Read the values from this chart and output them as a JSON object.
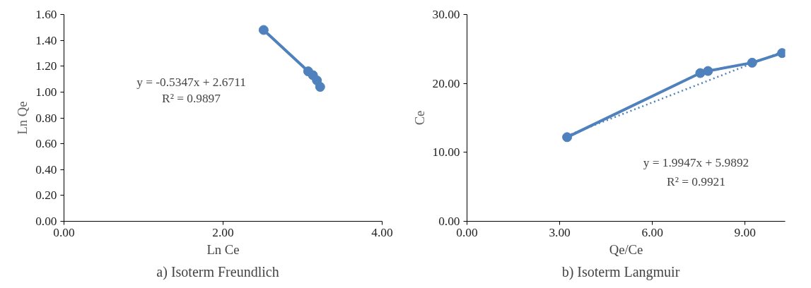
{
  "chart_data": [
    {
      "type": "line",
      "title": "a)    Isoterm Freundlich",
      "xlabel": "Ln Ce",
      "ylabel": "Ln Qe",
      "marker": "circle",
      "line_style": "solid",
      "grid": false,
      "xlim": [
        0,
        4
      ],
      "xticks": [
        {
          "value": 0,
          "label": "0.00"
        },
        {
          "value": 2,
          "label": "2.00"
        },
        {
          "value": 4,
          "label": "4.00"
        }
      ],
      "ylim": [
        0,
        1.6
      ],
      "yticks": [
        {
          "value": 0,
          "label": "0.00"
        },
        {
          "value": 0.2,
          "label": "0.20"
        },
        {
          "value": 0.4,
          "label": "0.40"
        },
        {
          "value": 0.6,
          "label": "0.60"
        },
        {
          "value": 0.8,
          "label": "0.80"
        },
        {
          "value": 1.0,
          "label": "1.00"
        },
        {
          "value": 1.2,
          "label": "1.20"
        },
        {
          "value": 1.4,
          "label": "1.40"
        },
        {
          "value": 1.6,
          "label": "1.60"
        }
      ],
      "annotations": [
        "y = -0.5347x + 2.6711",
        "R² = 0.9897"
      ],
      "series": [
        {
          "color": "#4f81bd",
          "x": [
            2.51,
            3.07,
            3.13,
            3.18,
            3.22
          ],
          "values": [
            1.48,
            1.16,
            1.13,
            1.09,
            1.04
          ]
        }
      ]
    },
    {
      "type": "line",
      "title": "b)    Isoterm Langmuir",
      "xlabel": "Qe/Ce",
      "ylabel": "Ce",
      "marker": "circle",
      "line_style": "solid",
      "grid": false,
      "xlim": [
        0,
        10.3
      ],
      "xticks": [
        {
          "value": 0,
          "label": "0.00"
        },
        {
          "value": 3,
          "label": "3.00"
        },
        {
          "value": 6,
          "label": "6.00"
        },
        {
          "value": 9,
          "label": "9.00"
        }
      ],
      "ylim": [
        0,
        30
      ],
      "yticks": [
        {
          "value": 0,
          "label": "0.00"
        },
        {
          "value": 10,
          "label": "10.00"
        },
        {
          "value": 20,
          "label": "20.00"
        },
        {
          "value": 30,
          "label": "30.00"
        }
      ],
      "annotations": [
        "y = 1.9947x + 5.9892",
        "R² = 0.9921"
      ],
      "series": [
        {
          "color": "#4f81bd",
          "x": [
            3.24,
            7.55,
            7.8,
            9.23,
            10.2
          ],
          "values": [
            12.2,
            21.5,
            21.8,
            23.0,
            24.4
          ]
        },
        {
          "type": "line",
          "color": "#4f81bd",
          "line_style": "dotted",
          "marker": "none",
          "x": [
            3.24,
            10.2
          ],
          "values": [
            12.4,
            24.6
          ]
        }
      ]
    }
  ]
}
